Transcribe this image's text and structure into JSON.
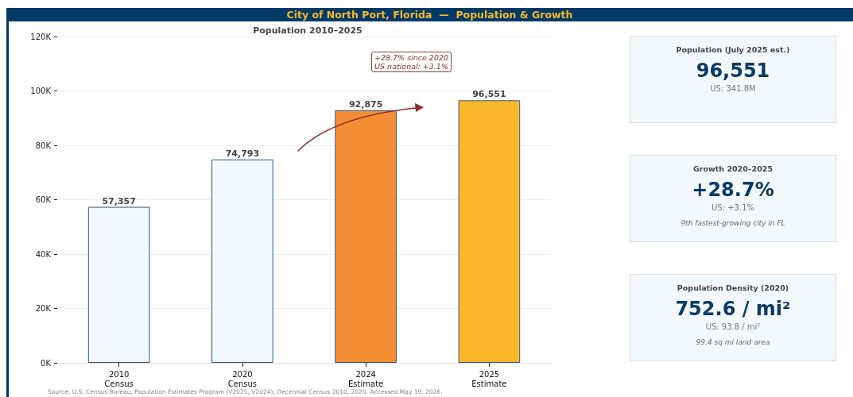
{
  "chart_data": [
    {
      "type": "bar",
      "title": "City of North Port, Florida  —  Population & Growth",
      "subtitle": "Population 2010–2025",
      "categories": [
        "2010\nCensus",
        "2020\nCensus",
        "2024\nEstimate",
        "2025\nEstimate"
      ],
      "values": [
        57357,
        74793,
        92875,
        96551
      ],
      "colors": [
        "#f3f8fc",
        "#f3f8fc",
        "#f58d35",
        "#fdb72b"
      ],
      "ylim": [
        0,
        120000
      ],
      "yticks": [
        {
          "value": 0,
          "label": "0K"
        },
        {
          "value": 20000,
          "label": "20K"
        },
        {
          "value": 40000,
          "label": "40K"
        },
        {
          "value": 60000,
          "label": "60K"
        },
        {
          "value": 80000,
          "label": "80K"
        },
        {
          "value": 100000,
          "label": "100K"
        },
        {
          "value": 120000,
          "label": "120K"
        }
      ],
      "grid": "y",
      "value_labels": [
        "57,357",
        "74,793",
        "92,875",
        "96,551"
      ],
      "annotations": [
        "+28.7% since 2020\nUS national: +3.1%",
        "Source: U.S. Census Bureau, Population Estimates Program (V2025, V2024); Decennial Census 2010, 2020. Accessed May 19, 2026."
      ]
    },
    {
      "type": "other",
      "title": "Population (July 2025 est.)",
      "annotations": [
        "96,551",
        "US: 341.8M"
      ]
    },
    {
      "type": "other",
      "title": "Growth 2020–2025",
      "annotations": [
        "+28.7%",
        "US: +3.1%",
        "9th fastest-growing city in FL"
      ]
    },
    {
      "type": "other",
      "title": "Population Density (2020)",
      "annotations": [
        "752.6 / mi²",
        "US: 93.8 / mi²",
        "99.4 sq mi land area"
      ]
    }
  ]
}
